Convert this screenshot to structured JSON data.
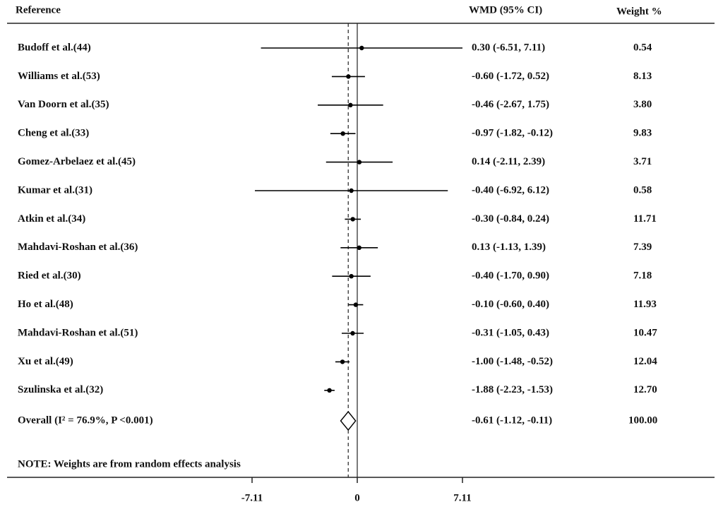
{
  "chart_data": {
    "type": "forest",
    "headers": {
      "reference": "Reference",
      "estimate": "WMD (95% CI)",
      "weight": "Weight %"
    },
    "categories": [
      "Budoff et al.(44)",
      "Williams et al.(53)",
      "Van Doorn et al.(35)",
      "Cheng et al.(33)",
      "Gomez-Arbelaez et al.(45)",
      "Kumar et al.(31)",
      "Atkin et al.(34)",
      "Mahdavi-Roshan et al.(36)",
      "Ried et al.(30)",
      "Ho et al.(48)",
      "Mahdavi-Roshan et al.(51)",
      "Xu et al.(49)",
      "Szulinska et al.(32)"
    ],
    "values": [
      0.3,
      -0.6,
      -0.46,
      -0.97,
      0.14,
      -0.4,
      -0.3,
      0.13,
      -0.4,
      -0.1,
      -0.31,
      -1.0,
      -1.88
    ],
    "lower": [
      -6.51,
      -1.72,
      -2.67,
      -1.82,
      -2.11,
      -6.92,
      -0.84,
      -1.13,
      -1.7,
      -0.6,
      -1.05,
      -1.48,
      -2.23
    ],
    "upper": [
      7.11,
      0.52,
      1.75,
      -0.12,
      2.39,
      6.12,
      0.24,
      1.39,
      0.9,
      0.4,
      0.43,
      -0.52,
      -1.53
    ],
    "value_labels": [
      "0.30 (-6.51, 7.11)",
      "-0.60 (-1.72, 0.52)",
      "-0.46 (-2.67, 1.75)",
      "-0.97 (-1.82, -0.12)",
      "0.14 (-2.11, 2.39)",
      "-0.40 (-6.92, 6.12)",
      "-0.30 (-0.84, 0.24)",
      "0.13 (-1.13, 1.39)",
      "-0.40 (-1.70, 0.90)",
      "-0.10 (-0.60, 0.40)",
      "-0.31 (-1.05, 0.43)",
      "-1.00 (-1.48, -0.52)",
      "-1.88 (-2.23, -1.53)"
    ],
    "weights": [
      "0.54",
      "8.13",
      "3.80",
      "9.83",
      "3.71",
      "0.58",
      "11.71",
      "7.39",
      "7.18",
      "11.93",
      "10.47",
      "12.04",
      "12.70"
    ],
    "overall": {
      "label": "Overall  (I² = 76.9%, P <0.001)",
      "value": -0.61,
      "lower": -1.12,
      "upper": -0.11,
      "value_label": "-0.61 (-1.12, -0.11)",
      "weight": "100.00"
    },
    "note": "NOTE: Weights are from random effects analysis",
    "xlim": [
      -7.11,
      7.11
    ],
    "xticks": [
      -7.11,
      0,
      7.11
    ],
    "color": "#000000"
  }
}
